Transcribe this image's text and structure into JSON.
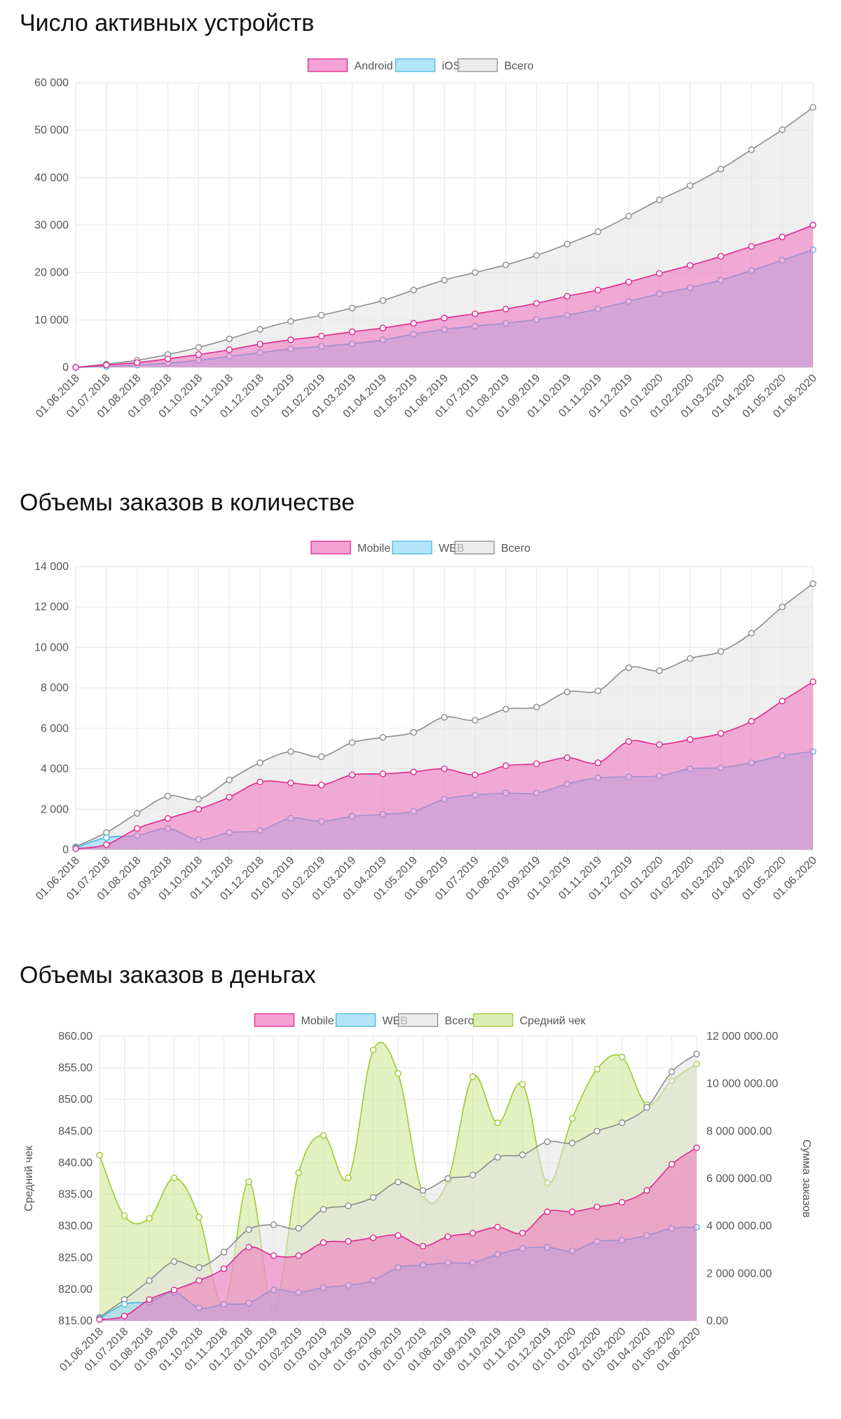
{
  "chart_data": [
    {
      "type": "area",
      "title": "Число активных устройств",
      "categories": [
        "01.06.2018",
        "01.07.2018",
        "01.08.2018",
        "01.09.2018",
        "01.10.2018",
        "01.11.2018",
        "01.12.2018",
        "01.01.2019",
        "01.02.2019",
        "01.03.2019",
        "01.04.2019",
        "01.05.2019",
        "01.06.2019",
        "01.07.2019",
        "01.08.2019",
        "01.09.2019",
        "01.10.2019",
        "01.11.2019",
        "01.12.2019",
        "01.01.2020",
        "01.02.2020",
        "01.03.2020",
        "01.04.2020",
        "01.05.2020",
        "01.06.2020"
      ],
      "ylim": [
        0,
        60000
      ],
      "yticks": [
        0,
        10000,
        20000,
        30000,
        40000,
        50000,
        60000
      ],
      "ytick_labels": [
        "0",
        "10 000",
        "20 000",
        "30 000",
        "40 000",
        "50 000",
        "60 000"
      ],
      "legend_position": "top-center",
      "series": [
        {
          "name": "Android",
          "color": "#e0288f",
          "fill": "#ee6fbe",
          "values": [
            0,
            500,
            1000,
            1800,
            2700,
            3700,
            4900,
            5800,
            6600,
            7500,
            8300,
            9300,
            10400,
            11300,
            12300,
            13500,
            15000,
            16300,
            18000,
            19800,
            21500,
            23400,
            25500,
            27500,
            30000
          ]
        },
        {
          "name": "iOS",
          "color": "#46b8e6",
          "fill": "#8ad7f5",
          "values": [
            0,
            200,
            500,
            900,
            1500,
            2300,
            3100,
            3900,
            4400,
            5000,
            5800,
            7000,
            8000,
            8700,
            9300,
            10100,
            11000,
            12300,
            13900,
            15500,
            16800,
            18400,
            20400,
            22600,
            24800
          ]
        },
        {
          "name": "Всего",
          "color": "#8c8c8c",
          "fill": "#e2e2e2",
          "values": [
            0,
            700,
            1500,
            2700,
            4200,
            6000,
            8000,
            9700,
            11000,
            12500,
            14100,
            16300,
            18400,
            20000,
            21600,
            23600,
            26000,
            28600,
            31900,
            35300,
            38300,
            41800,
            45900,
            50100,
            54800
          ]
        }
      ]
    },
    {
      "type": "area",
      "title": "Объемы заказов в количестве",
      "categories": [
        "01.06.2018",
        "01.07.2018",
        "01.08.2018",
        "01.09.2018",
        "01.10.2018",
        "01.11.2018",
        "01.12.2018",
        "01.01.2019",
        "01.02.2019",
        "01.03.2019",
        "01.04.2019",
        "01.05.2019",
        "01.06.2019",
        "01.07.2019",
        "01.08.2019",
        "01.09.2019",
        "01.10.2019",
        "01.11.2019",
        "01.12.2019",
        "01.01.2020",
        "01.02.2020",
        "01.03.2020",
        "01.04.2020",
        "01.05.2020",
        "01.06.2020"
      ],
      "ylim": [
        0,
        14000
      ],
      "yticks": [
        0,
        2000,
        4000,
        6000,
        8000,
        10000,
        12000,
        14000
      ],
      "ytick_labels": [
        "0",
        "2 000",
        "4 000",
        "6 000",
        "8 000",
        "10 000",
        "12 000",
        "14 000"
      ],
      "legend_position": "top-center",
      "series": [
        {
          "name": "Mobile",
          "color": "#e0288f",
          "fill": "#ee6fbe",
          "values": [
            50,
            250,
            1050,
            1550,
            2000,
            2600,
            3350,
            3300,
            3200,
            3700,
            3750,
            3850,
            4000,
            3700,
            4150,
            4250,
            4550,
            4300,
            5350,
            5200,
            5450,
            5750,
            6350,
            7350,
            8300
          ]
        },
        {
          "name": "WEB",
          "color": "#46b8e6",
          "fill": "#8ad7f5",
          "values": [
            100,
            600,
            700,
            1050,
            500,
            850,
            950,
            1550,
            1400,
            1650,
            1750,
            1900,
            2500,
            2700,
            2800,
            2800,
            3250,
            3550,
            3600,
            3650,
            4000,
            4050,
            4300,
            4650,
            4850
          ]
        },
        {
          "name": "Всего",
          "color": "#8c8c8c",
          "fill": "#e2e2e2",
          "values": [
            150,
            850,
            1800,
            2650,
            2500,
            3450,
            4300,
            4850,
            4600,
            5300,
            5550,
            5800,
            6550,
            6400,
            6950,
            7050,
            7800,
            7850,
            9000,
            8850,
            9450,
            9800,
            10700,
            12000,
            13150
          ]
        }
      ]
    },
    {
      "type": "area",
      "title": "Объемы заказов в деньгах",
      "categories": [
        "01.06.2018",
        "01.07.2018",
        "01.08.2018",
        "01.09.2018",
        "01.10.2018",
        "01.11.2018",
        "01.12.2018",
        "01.01.2019",
        "01.02.2019",
        "01.03.2019",
        "01.04.2019",
        "01.05.2019",
        "01.06.2019",
        "01.07.2019",
        "01.08.2019",
        "01.09.2019",
        "01.10.2019",
        "01.11.2019",
        "01.12.2019",
        "01.01.2020",
        "01.02.2020",
        "01.03.2020",
        "01.04.2020",
        "01.05.2020",
        "01.06.2020"
      ],
      "ylabel_left": "Средний чек",
      "ylabel_right": "Сумма заказов",
      "ylim_left": [
        815,
        860
      ],
      "yticks_left": [
        815,
        820,
        825,
        830,
        835,
        840,
        845,
        850,
        855,
        860
      ],
      "ytick_labels_left": [
        "815.00",
        "820.00",
        "825.00",
        "830.00",
        "835.00",
        "840.00",
        "845.00",
        "850.00",
        "855.00",
        "860.00"
      ],
      "ylim_right": [
        0,
        12000000
      ],
      "yticks_right": [
        0,
        2000000,
        4000000,
        6000000,
        8000000,
        10000000,
        12000000
      ],
      "ytick_labels_right": [
        "0.00",
        "2 000 000.00",
        "4 000 000.00",
        "6 000 000.00",
        "8 000 000.00",
        "10 000 000.00",
        "12 000 000.00"
      ],
      "legend_position": "top-center",
      "series": [
        {
          "name": "Mobile",
          "axis": "right",
          "color": "#e0288f",
          "fill": "#ee6fbe",
          "values": [
            50000,
            200000,
            900000,
            1300000,
            1700000,
            2200000,
            3100000,
            2750000,
            2750000,
            3300000,
            3350000,
            3500000,
            3600000,
            3150000,
            3550000,
            3700000,
            3950000,
            3700000,
            4600000,
            4600000,
            4800000,
            5000000,
            5500000,
            6600000,
            7300000
          ]
        },
        {
          "name": "WEB",
          "axis": "right",
          "color": "#46b8e6",
          "fill": "#8ad7f5",
          "values": [
            100000,
            700000,
            800000,
            1200000,
            550000,
            700000,
            750000,
            1300000,
            1200000,
            1400000,
            1500000,
            1700000,
            2250000,
            2350000,
            2450000,
            2450000,
            2800000,
            3050000,
            3100000,
            2950000,
            3350000,
            3400000,
            3600000,
            3900000,
            3950000
          ]
        },
        {
          "name": "Всего",
          "axis": "right",
          "color": "#8c8c8c",
          "fill": "#e2e2e2",
          "values": [
            150000,
            900000,
            1700000,
            2500000,
            2250000,
            2900000,
            3850000,
            4050000,
            3900000,
            4700000,
            4850000,
            5200000,
            5850000,
            5500000,
            6000000,
            6150000,
            6900000,
            7000000,
            7550000,
            7500000,
            8000000,
            8350000,
            9000000,
            10500000,
            11250000
          ]
        },
        {
          "name": "Средний чек",
          "axis": "left",
          "color": "#9acb2e",
          "fill": "#cce38e",
          "values": [
            841.2,
            831.6,
            831.2,
            837.6,
            831.4,
            817.6,
            837.0,
            817.2,
            838.4,
            844.3,
            837.6,
            857.8,
            854.1,
            835.1,
            837.2,
            853.6,
            846.3,
            852.4,
            836.8,
            847.0,
            854.8,
            856.7,
            849.2,
            853.0,
            855.6
          ]
        }
      ]
    }
  ]
}
